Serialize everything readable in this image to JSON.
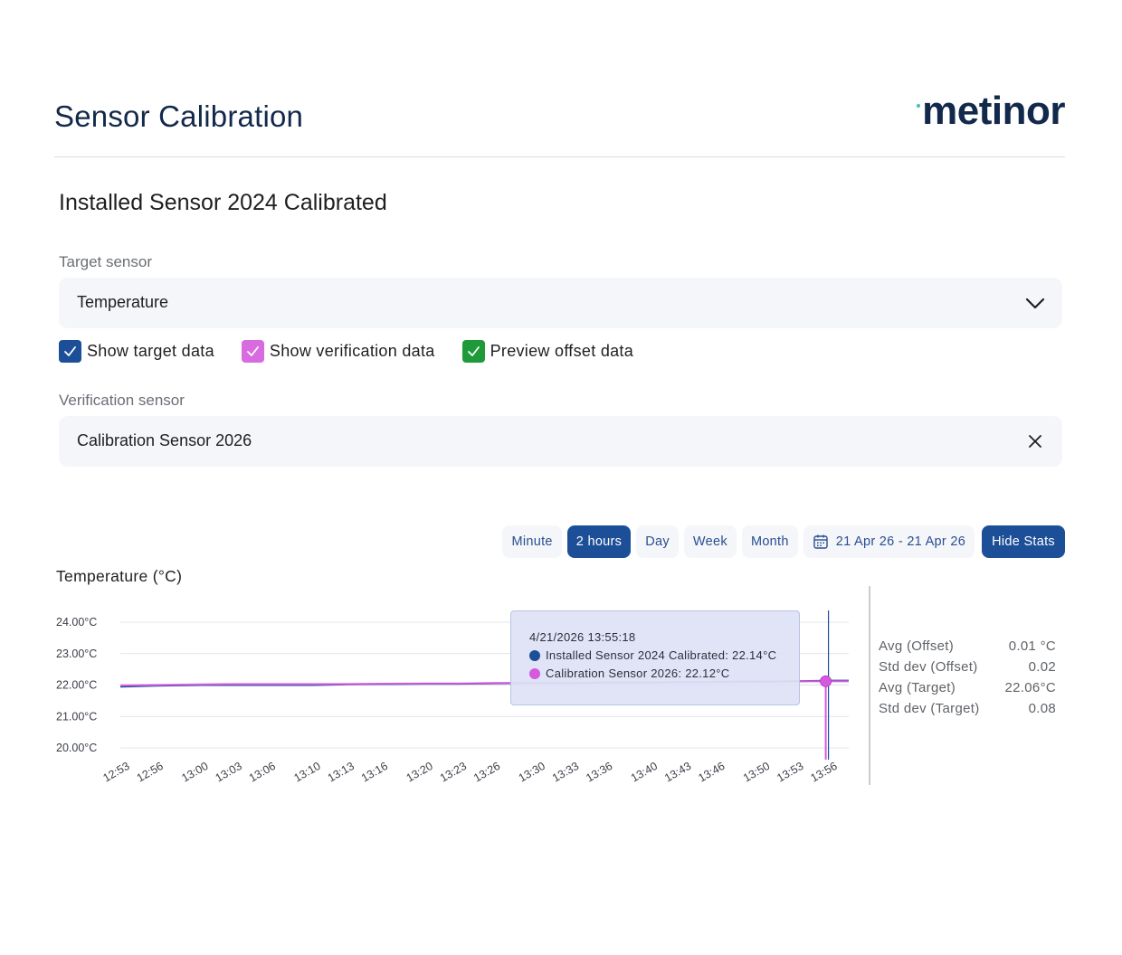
{
  "header": {
    "title": "Sensor Calibration",
    "logo": "metinor"
  },
  "card": {
    "title": "Installed Sensor 2024 Calibrated",
    "target_label": "Target sensor",
    "target_value": "Temperature",
    "checkboxes": [
      {
        "label": "Show target data",
        "checked": true,
        "color": "#1d4f99"
      },
      {
        "label": "Show verification data",
        "checked": true,
        "color": "#d86be0"
      },
      {
        "label": "Preview offset data",
        "checked": true,
        "color": "#1e9a39"
      }
    ],
    "verification_label": "Verification sensor",
    "verification_value": "Calibration Sensor 2026"
  },
  "toolbar": {
    "buttons": [
      "Minute",
      "2 hours",
      "Day",
      "Week",
      "Month"
    ],
    "active": "2 hours",
    "date_range": "21 Apr 26 - 21 Apr 26",
    "stats_button": "Hide Stats"
  },
  "chart_title": "Temperature (°C)",
  "tooltip": {
    "timestamp": "4/21/2026 13:55:18",
    "rows": [
      {
        "text": "Installed Sensor 2024 Calibrated: 22.14°C",
        "color": "#1d4f99"
      },
      {
        "text": "Calibration Sensor 2026: 22.12°C",
        "color": "#d65ae0"
      }
    ]
  },
  "stats": [
    {
      "label": "Avg (Offset)",
      "value": "0.01 °C"
    },
    {
      "label": "Std dev (Offset)",
      "value": "0.02"
    },
    {
      "label": "Avg (Target)",
      "value": "22.06°C"
    },
    {
      "label": "Std dev (Target)",
      "value": "0.08"
    }
  ],
  "chart_data": {
    "type": "line",
    "ylabel": "",
    "ylim": [
      20,
      24
    ],
    "y_ticks": [
      "24.00°C",
      "23.00°C",
      "22.00°C",
      "21.00°C",
      "20.00°C"
    ],
    "x_ticks": [
      "12:53",
      "12:56",
      "13:00",
      "13:03",
      "13:06",
      "13:10",
      "13:13",
      "13:16",
      "13:20",
      "13:23",
      "13:26",
      "13:30",
      "13:33",
      "13:36",
      "13:40",
      "13:43",
      "13:46",
      "13:50",
      "13:53",
      "13:56"
    ],
    "x": [
      "12:53",
      "12:56",
      "13:00",
      "13:03",
      "13:06",
      "13:10",
      "13:13",
      "13:16",
      "13:20",
      "13:23",
      "13:26",
      "13:30",
      "13:33",
      "13:36",
      "13:40",
      "13:43",
      "13:46",
      "13:50",
      "13:53",
      "13:56"
    ],
    "series": [
      {
        "name": "Installed Sensor 2024 Calibrated",
        "color": "#1d4f99",
        "values": [
          21.95,
          21.98,
          22.0,
          22.0,
          22.0,
          22.0,
          22.02,
          22.03,
          22.04,
          22.04,
          22.05,
          22.06,
          22.06,
          22.08,
          22.08,
          22.09,
          22.1,
          22.11,
          22.12,
          22.14
        ]
      },
      {
        "name": "Calibration Sensor 2026",
        "color": "#d65ae0",
        "values": [
          21.99,
          22.0,
          22.02,
          22.03,
          22.03,
          22.03,
          22.03,
          22.04,
          22.05,
          22.05,
          22.06,
          22.07,
          22.07,
          22.08,
          22.09,
          22.09,
          22.1,
          22.11,
          22.12,
          22.12
        ]
      }
    ],
    "cursor": "13:55"
  }
}
